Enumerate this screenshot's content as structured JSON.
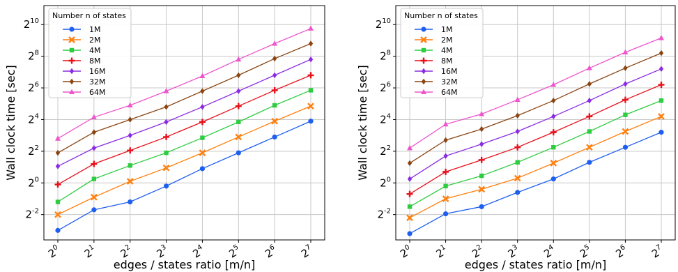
{
  "chart_data": [
    {
      "type": "line",
      "xlabel": "edges / states ratio [m/n]",
      "ylabel": "Wall clock time [sec]",
      "x_scale": "log2",
      "y_scale": "log2",
      "x": [
        1,
        2,
        4,
        8,
        16,
        32,
        64,
        128
      ],
      "x_tick_exponents": [
        "0",
        "1",
        "2",
        "3",
        "4",
        "5",
        "6",
        "7"
      ],
      "y_tick_exponents": [
        "-2",
        "0",
        "2",
        "4",
        "6",
        "8",
        "10"
      ],
      "ylim_log2": [
        -3.6,
        11.2
      ],
      "grid": true,
      "legend": {
        "title": "Number n of states",
        "placement": "top-left"
      },
      "series": [
        {
          "name": "1M",
          "color": "#1f5ff0",
          "marker": "circle",
          "log2_values": [
            -3.0,
            -1.7,
            -1.2,
            -0.2,
            0.9,
            1.9,
            2.9,
            3.9
          ]
        },
        {
          "name": "2M",
          "color": "#ff7f0e",
          "marker": "x",
          "log2_values": [
            -2.0,
            -0.9,
            0.1,
            0.95,
            1.9,
            2.9,
            3.9,
            4.85
          ]
        },
        {
          "name": "4M",
          "color": "#2ecc40",
          "marker": "square",
          "log2_values": [
            -1.2,
            0.25,
            1.1,
            1.9,
            2.85,
            3.85,
            4.9,
            5.85
          ]
        },
        {
          "name": "8M",
          "color": "#e8101a",
          "marker": "plus",
          "log2_values": [
            -0.1,
            1.2,
            2.05,
            2.9,
            3.85,
            4.85,
            5.85,
            6.8
          ]
        },
        {
          "name": "16M",
          "color": "#8a2be2",
          "marker": "diamond",
          "log2_values": [
            1.05,
            2.2,
            3.0,
            3.85,
            4.8,
            5.8,
            6.8,
            7.8
          ]
        },
        {
          "name": "32M",
          "color": "#8b4513",
          "marker": "diamond",
          "log2_values": [
            1.9,
            3.2,
            4.0,
            4.8,
            5.8,
            6.8,
            7.85,
            8.8
          ]
        },
        {
          "name": "64M",
          "color": "#ee55cc",
          "marker": "triangle",
          "log2_values": [
            2.8,
            4.15,
            4.9,
            5.8,
            6.75,
            7.8,
            8.8,
            9.75
          ]
        }
      ]
    },
    {
      "type": "line",
      "xlabel": "edges / states ratio [m/n]",
      "ylabel": "Wall clock time [sec]",
      "x_scale": "log2",
      "y_scale": "log2",
      "x": [
        1,
        2,
        4,
        8,
        16,
        32,
        64,
        128
      ],
      "x_tick_exponents": [
        "0",
        "1",
        "2",
        "3",
        "4",
        "5",
        "6",
        "7"
      ],
      "y_tick_exponents": [
        "-2",
        "0",
        "2",
        "4",
        "6",
        "8",
        "10"
      ],
      "ylim_log2": [
        -3.6,
        11.2
      ],
      "grid": true,
      "legend": {
        "title": "Number n of states",
        "placement": "top-left"
      },
      "series": [
        {
          "name": "1M",
          "color": "#1f5ff0",
          "marker": "circle",
          "log2_values": [
            -3.2,
            -1.95,
            -1.5,
            -0.6,
            0.25,
            1.3,
            2.25,
            3.2
          ]
        },
        {
          "name": "2M",
          "color": "#ff7f0e",
          "marker": "x",
          "log2_values": [
            -2.2,
            -1.0,
            -0.4,
            0.3,
            1.25,
            2.25,
            3.25,
            4.2
          ]
        },
        {
          "name": "4M",
          "color": "#2ecc40",
          "marker": "square",
          "log2_values": [
            -1.5,
            -0.2,
            0.45,
            1.3,
            2.25,
            3.25,
            4.3,
            5.2
          ]
        },
        {
          "name": "8M",
          "color": "#e8101a",
          "marker": "plus",
          "log2_values": [
            -0.7,
            0.7,
            1.45,
            2.25,
            3.2,
            4.2,
            5.25,
            6.2
          ]
        },
        {
          "name": "16M",
          "color": "#8a2be2",
          "marker": "diamond",
          "log2_values": [
            0.25,
            1.7,
            2.45,
            3.25,
            4.2,
            5.2,
            6.25,
            7.2
          ]
        },
        {
          "name": "32M",
          "color": "#8b4513",
          "marker": "diamond",
          "log2_values": [
            1.25,
            2.7,
            3.4,
            4.25,
            5.2,
            6.25,
            7.25,
            8.2
          ]
        },
        {
          "name": "64M",
          "color": "#ee55cc",
          "marker": "triangle",
          "log2_values": [
            2.2,
            3.7,
            4.35,
            5.25,
            6.2,
            7.25,
            8.25,
            9.15
          ]
        }
      ]
    }
  ]
}
